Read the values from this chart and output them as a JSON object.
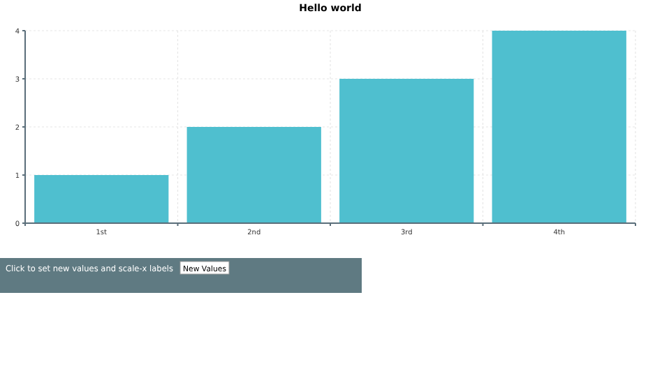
{
  "chart_data": {
    "type": "bar",
    "title": "Hello world",
    "categories": [
      "1st",
      "2nd",
      "3rd",
      "4th"
    ],
    "values": [
      1,
      2,
      3,
      4
    ],
    "color": "#4fbfcf",
    "ylim": [
      0,
      4
    ],
    "yticks": [
      0,
      1,
      2,
      3,
      4
    ],
    "grid": true,
    "annotations": [
      "Click to set new values and scale-x labels",
      "New Values"
    ]
  }
}
